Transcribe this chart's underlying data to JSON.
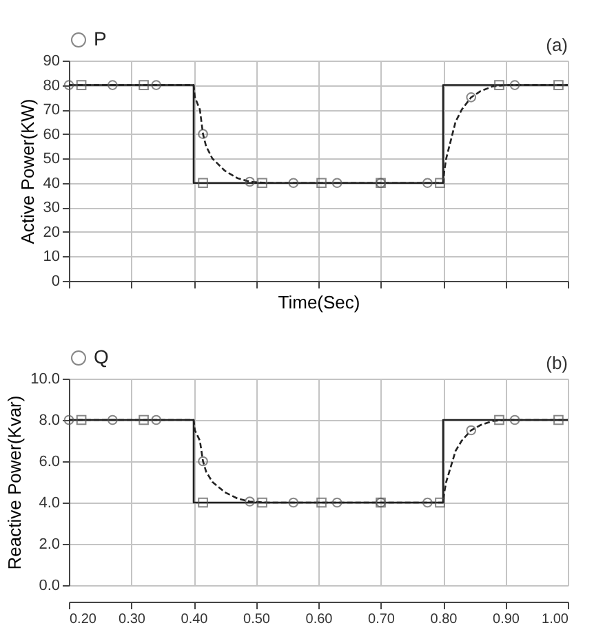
{
  "chart_data": [
    {
      "type": "line",
      "xlabel": "Time(Sec)",
      "ylabel": "Active Power(KW)",
      "annotations": [
        "(a)"
      ],
      "xlim": [
        0.2,
        1.0
      ],
      "xticks": [
        0.2,
        0.3,
        0.4,
        0.5,
        0.6,
        0.7,
        0.8,
        0.9,
        1.0
      ],
      "ylim": [
        0,
        90
      ],
      "yticks": [
        0,
        10,
        20,
        30,
        40,
        50,
        60,
        70,
        80,
        90
      ],
      "grid": true,
      "legend": "top left",
      "tick_labels": "y",
      "series": [
        {
          "type": "line",
          "color": "#222222",
          "line_style": "dashed",
          "x": [
            0.2,
            0.4,
            0.402,
            0.41,
            0.415,
            0.42,
            0.43,
            0.45,
            0.47,
            0.49,
            0.52,
            0.8,
            0.802,
            0.805,
            0.81,
            0.815,
            0.82,
            0.83,
            0.845,
            0.86,
            0.88,
            0.9,
            1.0
          ],
          "values": [
            80,
            80,
            75,
            70,
            60,
            55,
            50,
            45,
            42,
            40.5,
            40,
            40,
            45,
            50,
            55,
            60,
            65,
            70,
            75,
            77.5,
            79.5,
            80,
            80
          ]
        },
        {
          "type": "line",
          "color": "#222222",
          "line_style": "solid",
          "x": [
            0.2,
            0.4,
            0.4,
            0.8,
            0.8,
            1.0
          ],
          "values": [
            80,
            80,
            40,
            40,
            80,
            80
          ]
        },
        {
          "type": "scatter",
          "name": "P",
          "color": "#555555",
          "marker": "circle",
          "x": [
            0.2,
            0.27,
            0.34,
            0.415,
            0.49,
            0.56,
            0.63,
            0.7,
            0.775,
            0.845,
            0.915
          ],
          "values": [
            80,
            80,
            80,
            60,
            40.5,
            40,
            40,
            40,
            40,
            75,
            80
          ]
        },
        {
          "type": "scatter",
          "color": "#555555",
          "marker": "square",
          "x": [
            0.22,
            0.32,
            0.415,
            0.51,
            0.605,
            0.7,
            0.795,
            0.89,
            0.985
          ],
          "values": [
            80,
            80,
            40,
            40,
            40,
            40,
            40,
            80,
            80
          ]
        }
      ]
    },
    {
      "type": "line",
      "ylabel": "Reactive Power(Kvar)",
      "annotations": [
        "(b)"
      ],
      "xlim": [
        0.2,
        1.0
      ],
      "xticks": [
        {
          "value": 0.2,
          "label": "0.20"
        },
        {
          "value": 0.3,
          "label": "0.30"
        },
        {
          "value": 0.4,
          "label": "0.40"
        },
        {
          "value": 0.5,
          "label": "0.50"
        },
        {
          "value": 0.6,
          "label": "0.60"
        },
        {
          "value": 0.7,
          "label": "0.70"
        },
        {
          "value": 0.8,
          "label": "0.80"
        },
        {
          "value": 0.9,
          "label": "0.90"
        },
        {
          "value": 1.0,
          "label": "1.00"
        }
      ],
      "ylim": [
        0,
        10
      ],
      "yticks": [
        {
          "value": 0,
          "label": "0.0"
        },
        {
          "value": 2,
          "label": "2.0"
        },
        {
          "value": 4,
          "label": "4.0"
        },
        {
          "value": 6,
          "label": "6.0"
        },
        {
          "value": 8,
          "label": "8.0"
        },
        {
          "value": 10,
          "label": "10.0"
        }
      ],
      "grid": true,
      "legend": "top left",
      "series": [
        {
          "type": "line",
          "color": "#222222",
          "line_style": "dashed",
          "x": [
            0.2,
            0.4,
            0.402,
            0.41,
            0.415,
            0.42,
            0.43,
            0.45,
            0.47,
            0.49,
            0.52,
            0.8,
            0.802,
            0.805,
            0.81,
            0.815,
            0.82,
            0.83,
            0.845,
            0.86,
            0.88,
            0.9,
            1.0
          ],
          "values": [
            8,
            8,
            7.5,
            7,
            6,
            5.5,
            5,
            4.5,
            4.2,
            4.05,
            4,
            4,
            4.5,
            5,
            5.5,
            6,
            6.5,
            7,
            7.5,
            7.75,
            7.95,
            8,
            8
          ]
        },
        {
          "type": "line",
          "color": "#222222",
          "line_style": "solid",
          "x": [
            0.2,
            0.4,
            0.4,
            0.8,
            0.8,
            1.0
          ],
          "values": [
            8,
            8,
            4,
            4,
            8,
            8
          ]
        },
        {
          "type": "scatter",
          "name": "Q",
          "color": "#555555",
          "marker": "circle",
          "x": [
            0.2,
            0.27,
            0.34,
            0.415,
            0.49,
            0.56,
            0.63,
            0.7,
            0.775,
            0.845,
            0.915
          ],
          "values": [
            8,
            8,
            8,
            6,
            4.05,
            4,
            4,
            4,
            4,
            7.5,
            8
          ]
        },
        {
          "type": "scatter",
          "color": "#555555",
          "marker": "square",
          "x": [
            0.22,
            0.32,
            0.415,
            0.51,
            0.605,
            0.7,
            0.795,
            0.89,
            0.985
          ],
          "values": [
            8,
            8,
            4,
            4,
            4,
            4,
            4,
            8,
            8
          ]
        }
      ]
    }
  ]
}
